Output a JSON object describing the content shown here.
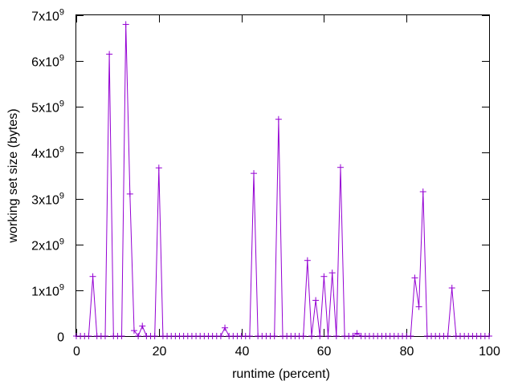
{
  "chart_data": {
    "type": "line",
    "xlabel": "runtime (percent)",
    "ylabel": "working set size (bytes)",
    "xlim": [
      0,
      100
    ],
    "ylim": [
      0,
      7000000000
    ],
    "x_ticks": [
      0,
      20,
      40,
      60,
      80,
      100
    ],
    "y_ticks": [
      {
        "value": 0,
        "mantissa": "0",
        "exponent": ""
      },
      {
        "value": 1000000000,
        "mantissa": "1x10",
        "exponent": "9"
      },
      {
        "value": 2000000000,
        "mantissa": "2x10",
        "exponent": "9"
      },
      {
        "value": 3000000000,
        "mantissa": "3x10",
        "exponent": "9"
      },
      {
        "value": 4000000000,
        "mantissa": "4x10",
        "exponent": "9"
      },
      {
        "value": 5000000000,
        "mantissa": "5x10",
        "exponent": "9"
      },
      {
        "value": 6000000000,
        "mantissa": "6x10",
        "exponent": "9"
      },
      {
        "value": 7000000000,
        "mantissa": "7x10",
        "exponent": "9"
      }
    ],
    "grid": false,
    "series": [
      {
        "color": "#9400d3",
        "marker": "plus",
        "x": [
          0,
          1,
          2,
          3,
          4,
          5,
          6,
          7,
          8,
          9,
          10,
          11,
          12,
          13,
          14,
          15,
          16,
          17,
          18,
          19,
          20,
          21,
          22,
          23,
          24,
          25,
          26,
          27,
          28,
          29,
          30,
          31,
          32,
          33,
          34,
          35,
          36,
          37,
          38,
          39,
          40,
          41,
          42,
          43,
          44,
          45,
          46,
          47,
          48,
          49,
          50,
          51,
          52,
          53,
          54,
          55,
          56,
          57,
          58,
          59,
          60,
          61,
          62,
          63,
          64,
          65,
          66,
          67,
          68,
          69,
          70,
          71,
          72,
          73,
          74,
          75,
          76,
          77,
          78,
          79,
          80,
          81,
          82,
          83,
          84,
          85,
          86,
          87,
          88,
          89,
          90,
          91,
          92,
          93,
          94,
          95,
          96,
          97,
          98,
          99,
          100
        ],
        "y": [
          0,
          0,
          0,
          0,
          1300000000,
          0,
          0,
          0,
          6150000000,
          0,
          0,
          0,
          6800000000,
          3100000000,
          120000000,
          0,
          220000000,
          0,
          0,
          0,
          3670000000,
          0,
          0,
          0,
          0,
          0,
          0,
          0,
          0,
          0,
          0,
          0,
          0,
          0,
          0,
          0,
          180000000,
          0,
          0,
          0,
          0,
          0,
          0,
          3550000000,
          0,
          0,
          0,
          0,
          0,
          4730000000,
          0,
          0,
          0,
          0,
          0,
          0,
          1650000000,
          0,
          780000000,
          0,
          1300000000,
          0,
          1380000000,
          0,
          3680000000,
          0,
          0,
          0,
          60000000,
          0,
          0,
          0,
          0,
          0,
          0,
          0,
          0,
          0,
          0,
          0,
          0,
          0,
          1270000000,
          640000000,
          3150000000,
          0,
          0,
          0,
          0,
          0,
          0,
          1050000000,
          0,
          0,
          0,
          0,
          0,
          0,
          0,
          0,
          0
        ]
      }
    ]
  }
}
